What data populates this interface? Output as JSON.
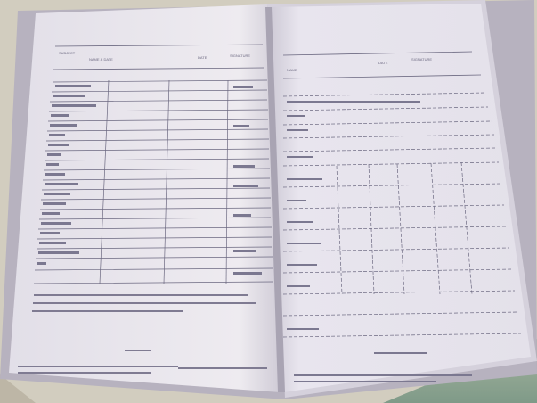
{
  "scene": {
    "description_labels": [],
    "colors": {
      "table": "#cfc9b8",
      "fabric": "#8fa58f",
      "paper_left": "#ece9ef",
      "paper_right": "#e6e3ec",
      "shadow": "#b9b4c2",
      "ink": "#6b6880"
    }
  },
  "left_page": {
    "header_left": "SUBJECT",
    "header_left_sub": "NAME & DATE",
    "header_mid": "DATE",
    "header_right": "SIGNATURE"
  },
  "right_page": {
    "header_left": "NAME",
    "header_mid": "DATE",
    "header_right": "SIGNATURE"
  }
}
